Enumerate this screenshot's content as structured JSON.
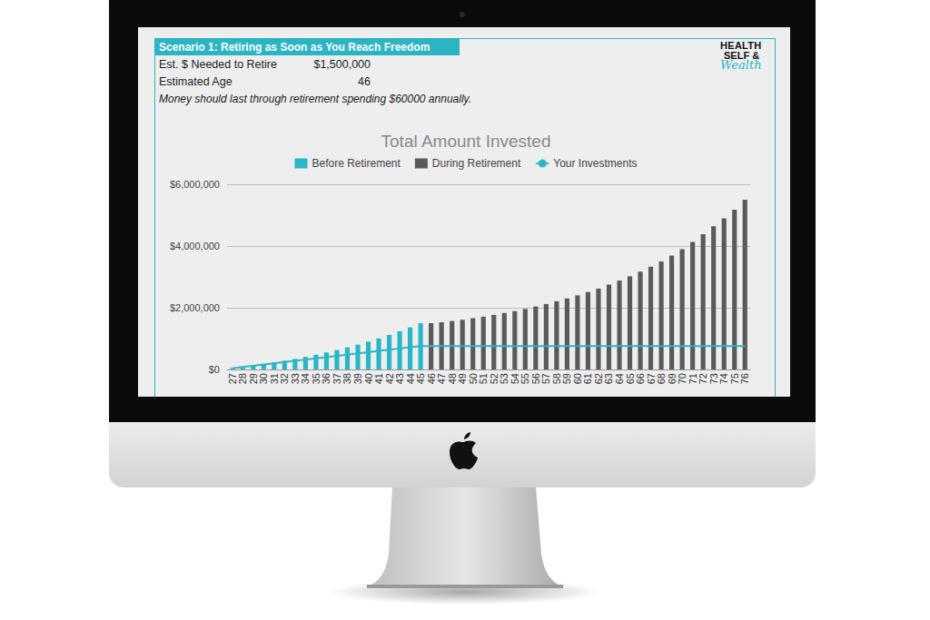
{
  "header": {
    "title": "Scenario 1: Retiring as Soon as You Reach Freedom",
    "rows": [
      {
        "label": "Est. $ Needed to Retire",
        "value": "$1,500,000"
      },
      {
        "label": "Estimated Age",
        "value": "46"
      }
    ],
    "note": "Money should last through retirement spending $60000 annually.",
    "logo": [
      "HEALTH",
      "SELF &",
      "Wealth"
    ]
  },
  "chart_data": {
    "type": "bar",
    "title": "Total Amount Invested",
    "categories": [
      "27",
      "28",
      "29",
      "30",
      "31",
      "32",
      "33",
      "34",
      "35",
      "36",
      "37",
      "38",
      "39",
      "40",
      "41",
      "42",
      "43",
      "44",
      "45",
      "46",
      "47",
      "48",
      "49",
      "50",
      "51",
      "52",
      "53",
      "54",
      "55",
      "56",
      "57",
      "58",
      "59",
      "60",
      "61",
      "62",
      "63",
      "64",
      "65",
      "66",
      "67",
      "68",
      "69",
      "70",
      "71",
      "72",
      "73",
      "74",
      "75",
      "76"
    ],
    "series": [
      {
        "name": "Before Retirement",
        "type": "bar",
        "color": "#29b6c6",
        "values": [
          40000,
          82000,
          127000,
          175000,
          227000,
          283000,
          343000,
          407000,
          476000,
          550000,
          629000,
          714000,
          805000,
          902000,
          1006000,
          1117000,
          1236000,
          1364000,
          1500000,
          null,
          null,
          null,
          null,
          null,
          null,
          null,
          null,
          null,
          null,
          null,
          null,
          null,
          null,
          null,
          null,
          null,
          null,
          null,
          null,
          null,
          null,
          null,
          null,
          null,
          null,
          null,
          null,
          null,
          null,
          null
        ]
      },
      {
        "name": "During Retirement",
        "type": "bar",
        "color": "#5a5a5a",
        "values": [
          null,
          null,
          null,
          null,
          null,
          null,
          null,
          null,
          null,
          null,
          null,
          null,
          null,
          null,
          null,
          null,
          null,
          null,
          null,
          1500000,
          1530000,
          1570000,
          1610000,
          1660000,
          1710000,
          1770000,
          1830000,
          1890000,
          1960000,
          2040000,
          2120000,
          2210000,
          2300000,
          2400000,
          2510000,
          2620000,
          2750000,
          2880000,
          3020000,
          3170000,
          3330000,
          3500000,
          3690000,
          3900000,
          4130000,
          4380000,
          4640000,
          4900000,
          5180000,
          5500000
        ]
      },
      {
        "name": "Your Investments",
        "type": "line",
        "color": "#29b6c6",
        "values": [
          40000,
          80000,
          120000,
          160000,
          200000,
          240000,
          280000,
          320000,
          360000,
          400000,
          440000,
          480000,
          520000,
          560000,
          600000,
          640000,
          680000,
          720000,
          760000,
          760000,
          760000,
          760000,
          760000,
          760000,
          760000,
          760000,
          760000,
          760000,
          760000,
          760000,
          760000,
          760000,
          760000,
          760000,
          760000,
          760000,
          760000,
          760000,
          760000,
          760000,
          760000,
          760000,
          760000,
          760000,
          760000,
          760000,
          760000,
          760000,
          760000,
          760000
        ]
      }
    ],
    "ylim": [
      0,
      6000000
    ],
    "yticks": [
      {
        "value": 0,
        "label": "$0"
      },
      {
        "value": 2000000,
        "label": "$2,000,000"
      },
      {
        "value": 4000000,
        "label": "$4,000,000"
      },
      {
        "value": 6000000,
        "label": "$6,000,000"
      }
    ],
    "grid": true,
    "legend": "top"
  }
}
